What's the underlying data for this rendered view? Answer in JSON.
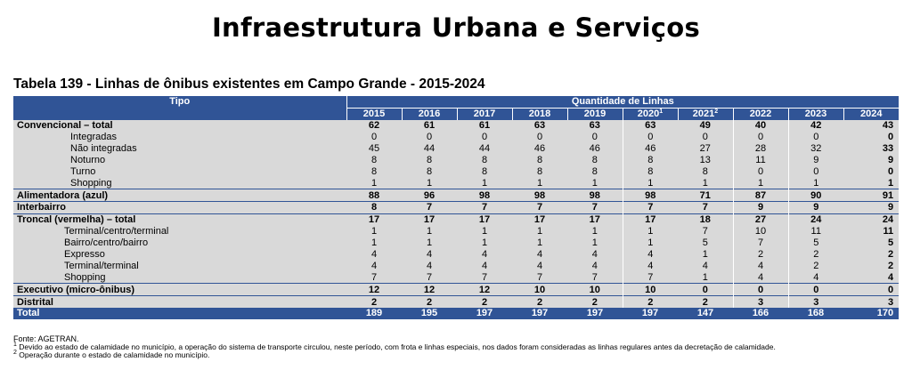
{
  "page_title": "Infraestrutura Urbana e Serviços",
  "table_title": "Tabela 139 - Linhas de ônibus existentes em Campo Grande - 2015-2024",
  "header": {
    "tipo": "Tipo",
    "quantidade": "Quantidade de Linhas",
    "years": [
      {
        "label": "2015",
        "sup": ""
      },
      {
        "label": "2016",
        "sup": ""
      },
      {
        "label": "2017",
        "sup": ""
      },
      {
        "label": "2018",
        "sup": ""
      },
      {
        "label": "2019",
        "sup": ""
      },
      {
        "label": "2020",
        "sup": "1"
      },
      {
        "label": "2021",
        "sup": "2"
      },
      {
        "label": "2022",
        "sup": ""
      },
      {
        "label": "2023",
        "sup": ""
      },
      {
        "label": "2024",
        "sup": ""
      }
    ]
  },
  "rows": [
    {
      "label": "Convencional – total",
      "level": "main",
      "values": [
        "62",
        "61",
        "61",
        "63",
        "63",
        "63",
        "49",
        "40",
        "42",
        "43"
      ]
    },
    {
      "label": "Integradas",
      "level": "sub",
      "values": [
        "0",
        "0",
        "0",
        "0",
        "0",
        "0",
        "0",
        "0",
        "0",
        "0"
      ]
    },
    {
      "label": "Não integradas",
      "level": "sub",
      "values": [
        "45",
        "44",
        "44",
        "46",
        "46",
        "46",
        "27",
        "28",
        "32",
        "33"
      ]
    },
    {
      "label": "Noturno",
      "level": "sub",
      "values": [
        "8",
        "8",
        "8",
        "8",
        "8",
        "8",
        "13",
        "11",
        "9",
        "9"
      ]
    },
    {
      "label": "Turno",
      "level": "sub",
      "values": [
        "8",
        "8",
        "8",
        "8",
        "8",
        "8",
        "8",
        "0",
        "0",
        "0"
      ]
    },
    {
      "label": "Shopping",
      "level": "sub",
      "values": [
        "1",
        "1",
        "1",
        "1",
        "1",
        "1",
        "1",
        "1",
        "1",
        "1"
      ]
    },
    {
      "label": "Alimentadora (azul)",
      "level": "main",
      "values": [
        "88",
        "96",
        "98",
        "98",
        "98",
        "98",
        "71",
        "87",
        "90",
        "91"
      ]
    },
    {
      "label": "Interbairro",
      "level": "main",
      "values": [
        "8",
        "7",
        "7",
        "7",
        "7",
        "7",
        "7",
        "9",
        "9",
        "9"
      ]
    },
    {
      "label": "Troncal (vermelha) – total",
      "level": "main",
      "values": [
        "17",
        "17",
        "17",
        "17",
        "17",
        "17",
        "18",
        "27",
        "24",
        "24"
      ]
    },
    {
      "label": "Terminal/centro/terminal",
      "level": "sub2",
      "values": [
        "1",
        "1",
        "1",
        "1",
        "1",
        "1",
        "7",
        "10",
        "11",
        "11"
      ]
    },
    {
      "label": "Bairro/centro/bairro",
      "level": "sub2",
      "values": [
        "1",
        "1",
        "1",
        "1",
        "1",
        "1",
        "5",
        "7",
        "5",
        "5"
      ]
    },
    {
      "label": "Expresso",
      "level": "sub2",
      "values": [
        "4",
        "4",
        "4",
        "4",
        "4",
        "4",
        "1",
        "2",
        "2",
        "2"
      ]
    },
    {
      "label": "Terminal/terminal",
      "level": "sub2",
      "values": [
        "4",
        "4",
        "4",
        "4",
        "4",
        "4",
        "4",
        "4",
        "2",
        "2"
      ]
    },
    {
      "label": "Shopping",
      "level": "sub2",
      "values": [
        "7",
        "7",
        "7",
        "7",
        "7",
        "7",
        "1",
        "4",
        "4",
        "4"
      ]
    },
    {
      "label": "Executivo (micro-ônibus)",
      "level": "main",
      "values": [
        "12",
        "12",
        "12",
        "10",
        "10",
        "10",
        "0",
        "0",
        "0",
        "0"
      ]
    },
    {
      "label": "Distrital",
      "level": "main",
      "values": [
        "2",
        "2",
        "2",
        "2",
        "2",
        "2",
        "2",
        "3",
        "3",
        "3"
      ]
    }
  ],
  "total": {
    "label": "Total",
    "values": [
      "189",
      "195",
      "197",
      "197",
      "197",
      "197",
      "147",
      "166",
      "168",
      "170"
    ]
  },
  "notes": {
    "source": "Fonte: AGETRAN.",
    "note1_mark": "1",
    "note1": " Devido ao estado de calamidade no município, a operação do sistema de transporte circulou, neste período, com frota e linhas especiais, nos dados foram consideradas as linhas regulares antes da decretação de calamidade.",
    "note2_mark": "2",
    "note2": " Operação durante o estado de calamidade no município."
  },
  "colors": {
    "header_blue": "#305496",
    "row_gray": "#d9d9d9"
  }
}
